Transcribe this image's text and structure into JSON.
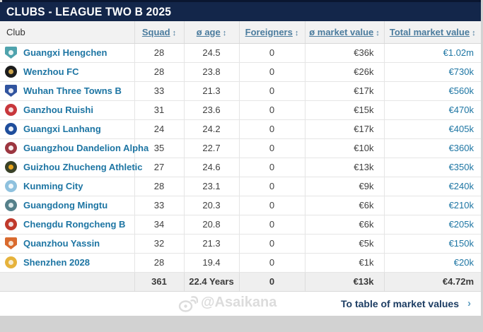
{
  "header": {
    "title": "CLUBS - LEAGUE TWO B 2025"
  },
  "colors": {
    "title_bar_bg": "#13264a",
    "link_blue": "#1d75a3",
    "header_link_blue": "#4a7b9d",
    "text_dark": "#404040",
    "footer_link_navy": "#1d3d63",
    "chevron_blue": "#5e9dc0",
    "totals_row_bg": "#efefef",
    "header_row_bg": "#f2f2f2",
    "page_bg": "#d2d2d2"
  },
  "table": {
    "sort_icon": "↕",
    "columns": [
      {
        "label": "Club",
        "sortable": false
      },
      {
        "label": "Squad",
        "sortable": true
      },
      {
        "label": "ø age",
        "sortable": true
      },
      {
        "label": "Foreigners",
        "sortable": true
      },
      {
        "label": "ø market value",
        "sortable": true
      },
      {
        "label": "Total market value",
        "sortable": true
      }
    ],
    "rows": [
      {
        "club": "Guangxi Hengchen",
        "squad": "28",
        "avg_age": "24.5",
        "foreigners": "0",
        "avg_mv": "€36k",
        "total_mv": "€1.02m",
        "crest": {
          "shape": "shield",
          "bg": "#4fa3ad",
          "inner": "#e8f4f4"
        }
      },
      {
        "club": "Wenzhou FC",
        "squad": "28",
        "avg_age": "23.8",
        "foreigners": "0",
        "avg_mv": "€26k",
        "total_mv": "€730k",
        "crest": {
          "shape": "circle",
          "bg": "#1c1c1c",
          "inner": "#c9a24a"
        }
      },
      {
        "club": "Wuhan Three Towns B",
        "squad": "33",
        "avg_age": "21.3",
        "foreigners": "0",
        "avg_mv": "€17k",
        "total_mv": "€560k",
        "crest": {
          "shape": "shield",
          "bg": "#31549f",
          "inner": "#e6e9f2"
        }
      },
      {
        "club": "Ganzhou Ruishi",
        "squad": "31",
        "avg_age": "23.6",
        "foreigners": "0",
        "avg_mv": "€15k",
        "total_mv": "€470k",
        "crest": {
          "shape": "circle",
          "bg": "#c8373c",
          "inner": "#f2dede"
        }
      },
      {
        "club": "Guangxi Lanhang",
        "squad": "24",
        "avg_age": "24.2",
        "foreigners": "0",
        "avg_mv": "€17k",
        "total_mv": "€405k",
        "crest": {
          "shape": "circle",
          "bg": "#1f4e9c",
          "inner": "#e8edf5"
        }
      },
      {
        "club": "Guangzhou Dandelion Alpha",
        "squad": "35",
        "avg_age": "22.7",
        "foreigners": "0",
        "avg_mv": "€10k",
        "total_mv": "€360k",
        "crest": {
          "shape": "circle",
          "bg": "#9c3640",
          "inner": "#f4eaea"
        }
      },
      {
        "club": "Guizhou Zhucheng Athletic",
        "squad": "27",
        "avg_age": "24.6",
        "foreigners": "0",
        "avg_mv": "€13k",
        "total_mv": "€350k",
        "crest": {
          "shape": "circle",
          "bg": "#3a4228",
          "inner": "#e8a41c"
        }
      },
      {
        "club": "Kunming City",
        "squad": "28",
        "avg_age": "23.1",
        "foreigners": "0",
        "avg_mv": "€9k",
        "total_mv": "€240k",
        "crest": {
          "shape": "circle",
          "bg": "#8ec1de",
          "inner": "#f0f7fb"
        }
      },
      {
        "club": "Guangdong Mingtu",
        "squad": "33",
        "avg_age": "20.3",
        "foreigners": "0",
        "avg_mv": "€6k",
        "total_mv": "€210k",
        "crest": {
          "shape": "circle",
          "bg": "#55808a",
          "inner": "#dce8ea"
        }
      },
      {
        "club": "Chengdu Rongcheng B",
        "squad": "34",
        "avg_age": "20.8",
        "foreigners": "0",
        "avg_mv": "€6k",
        "total_mv": "€205k",
        "crest": {
          "shape": "circle",
          "bg": "#c0392b",
          "inner": "#f0dede"
        }
      },
      {
        "club": "Quanzhou Yassin",
        "squad": "32",
        "avg_age": "21.3",
        "foreigners": "0",
        "avg_mv": "€5k",
        "total_mv": "€150k",
        "crest": {
          "shape": "shield",
          "bg": "#d96a2e",
          "inner": "#f5e3d0"
        }
      },
      {
        "club": "Shenzhen 2028",
        "squad": "28",
        "avg_age": "19.4",
        "foreigners": "0",
        "avg_mv": "€1k",
        "total_mv": "€20k",
        "crest": {
          "shape": "circle",
          "bg": "#e6b33c",
          "inner": "#f7ecd2"
        }
      }
    ],
    "totals": {
      "squad": "361",
      "avg_age": "22.4 Years",
      "foreigners": "0",
      "avg_mv": "€13k",
      "total_mv": "€4.72m"
    }
  },
  "footer": {
    "link_label": "To table of market values",
    "chevron": "›"
  },
  "watermark": {
    "text": "@Asaikana",
    "icon": "weibo-eye-icon"
  }
}
